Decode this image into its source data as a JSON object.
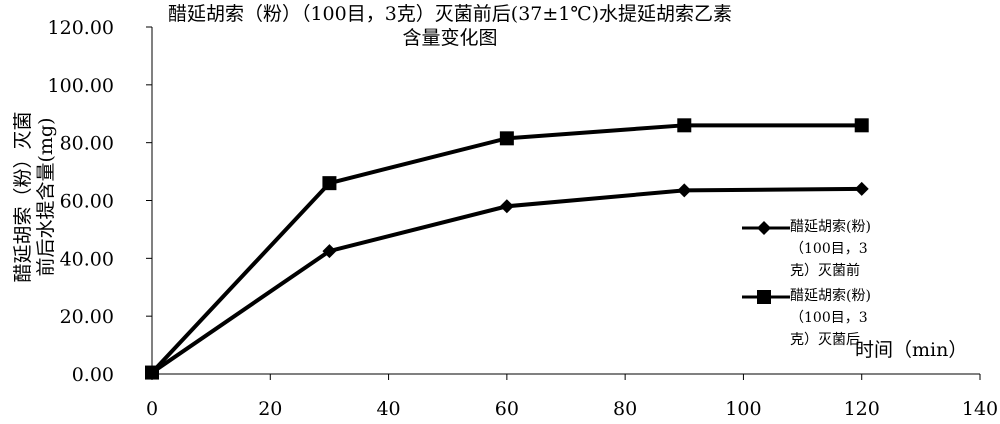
{
  "chart_data": {
    "type": "line",
    "title": [
      "醋延胡索（粉）（100目，3克）灭菌前后(37±1℃)水提延胡索乙素",
      "含量变化图"
    ],
    "ylabel": [
      "醋延胡索（粉）灭菌",
      "前后水提含量(mg)"
    ],
    "xlabel": "时间（min）",
    "xlim": [
      0,
      140
    ],
    "ylim": [
      0,
      120
    ],
    "x_ticks": [
      "0",
      "20",
      "40",
      "60",
      "80",
      "100",
      "120",
      "140"
    ],
    "y_ticks": [
      "0.00",
      "20.00",
      "40.00",
      "60.00",
      "80.00",
      "100.00",
      "120.00"
    ],
    "grid": false,
    "legend_position": "right",
    "series": [
      {
        "name": [
          "醋延胡索(粉)",
          "（100目，3",
          "克）灭菌前"
        ],
        "marker": "diamond",
        "color": "#000000",
        "points": [
          [
            0,
            0.5
          ],
          [
            30,
            42.5
          ],
          [
            60,
            58
          ],
          [
            90,
            63.5
          ],
          [
            120,
            64
          ]
        ]
      },
      {
        "name": [
          "醋延胡索(粉)",
          "（100目，3",
          "克）灭菌后"
        ],
        "marker": "square",
        "color": "#000000",
        "points": [
          [
            0,
            0.5
          ],
          [
            30,
            66
          ],
          [
            60,
            81.5
          ],
          [
            90,
            86
          ],
          [
            120,
            86
          ]
        ]
      }
    ]
  }
}
